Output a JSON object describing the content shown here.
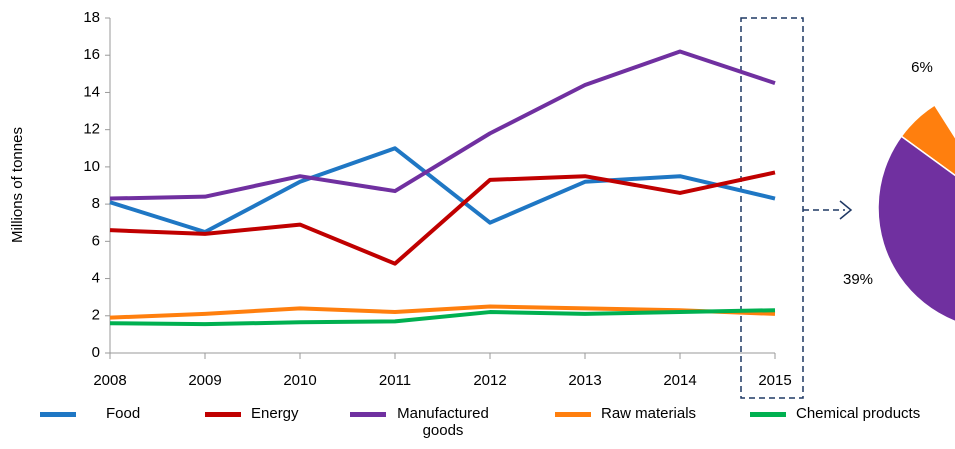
{
  "chart_data": [
    {
      "type": "line",
      "ylabel": "Millions of tonnes",
      "x": [
        2008,
        2009,
        2010,
        2011,
        2012,
        2013,
        2014,
        2015
      ],
      "xlim": [
        2008,
        2015
      ],
      "xticks": [
        2008,
        2009,
        2010,
        2011,
        2012,
        2013,
        2014,
        2015
      ],
      "ylim": [
        0,
        18
      ],
      "yticks": [
        0,
        2,
        4,
        6,
        8,
        10,
        12,
        14,
        16,
        18
      ],
      "grid": false,
      "legend": "bottom",
      "series": [
        {
          "name": "Food",
          "color": "#1f77c4",
          "values": [
            8.1,
            6.5,
            9.2,
            11.0,
            7.0,
            9.2,
            9.5,
            8.3
          ]
        },
        {
          "name": "Energy",
          "color": "#c00000",
          "values": [
            6.6,
            6.4,
            6.9,
            4.8,
            9.3,
            9.5,
            8.6,
            9.7
          ]
        },
        {
          "name": "Manufactured goods",
          "color": "#7030a0",
          "values": [
            8.3,
            8.4,
            9.5,
            8.7,
            11.8,
            14.4,
            16.2,
            14.5
          ]
        },
        {
          "name": "Raw materials",
          "color": "#ff7f0e",
          "values": [
            1.9,
            2.1,
            2.4,
            2.2,
            2.5,
            2.4,
            2.3,
            2.1
          ]
        },
        {
          "name": "Chemical products",
          "color": "#00b050",
          "values": [
            1.6,
            1.55,
            1.65,
            1.7,
            2.2,
            2.1,
            2.2,
            2.3
          ]
        }
      ]
    },
    {
      "type": "pie",
      "values": [
        6,
        39
      ],
      "value_labels": [
        "6%",
        "39%"
      ],
      "colors": [
        "#ff7f0e",
        "#7030a0"
      ]
    }
  ]
}
